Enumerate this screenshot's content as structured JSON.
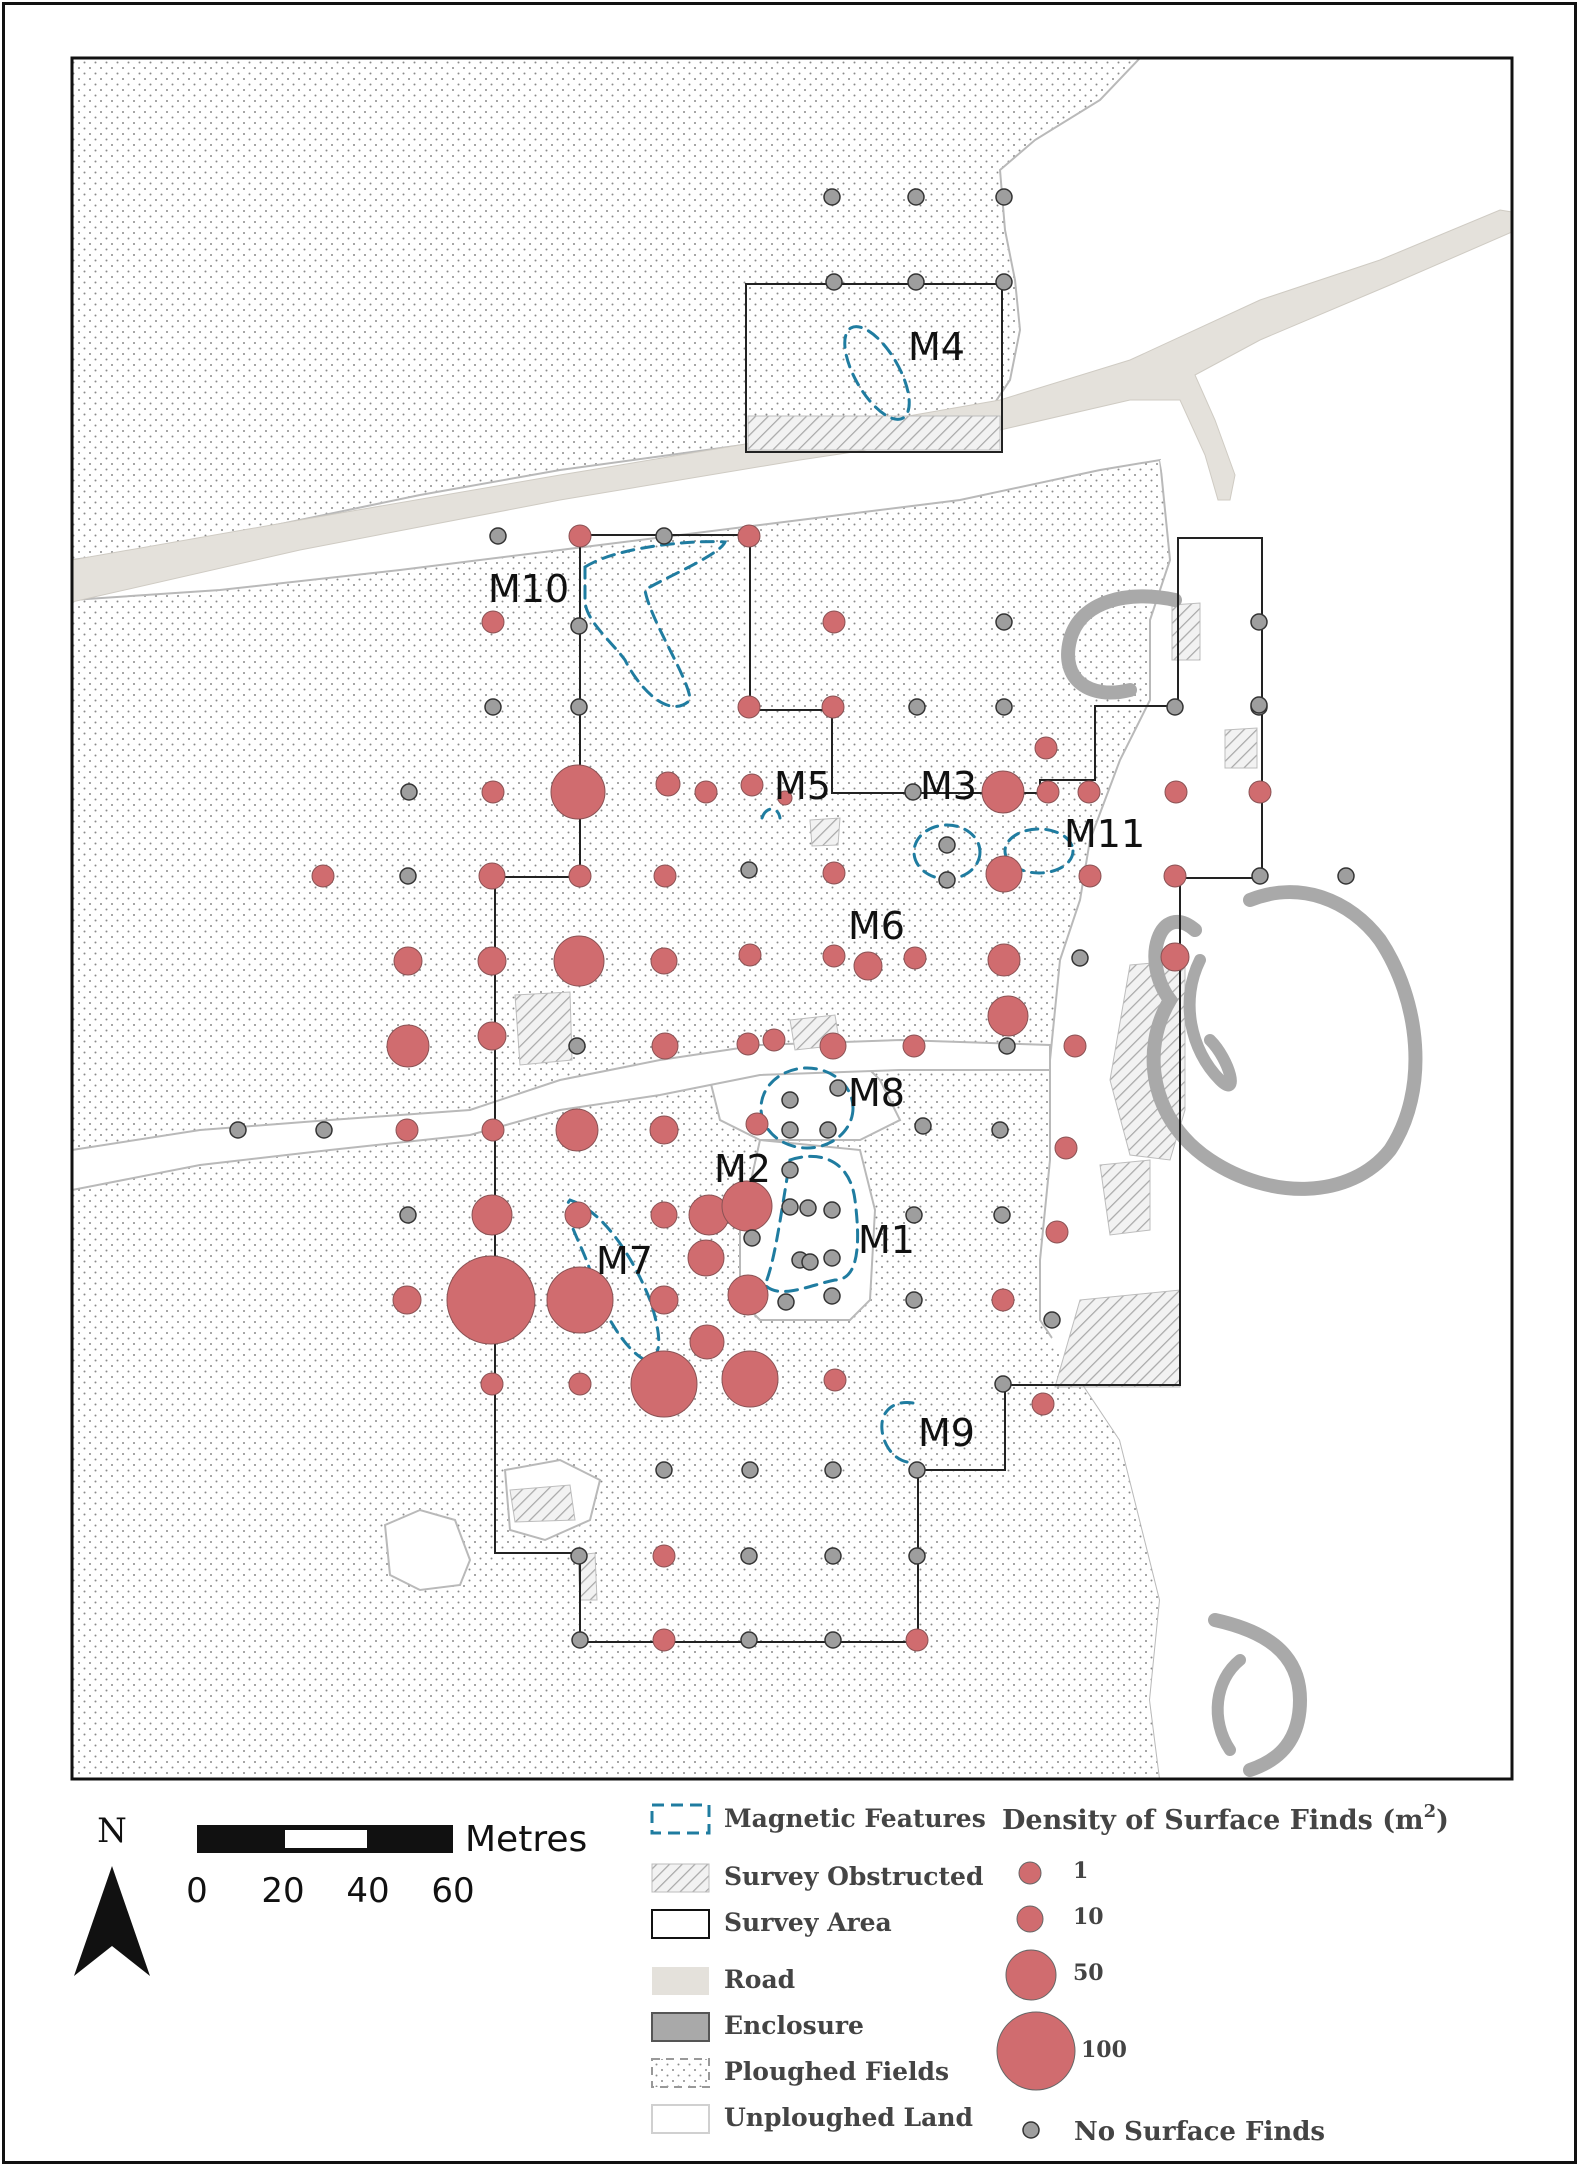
{
  "map": {
    "feature_labels": [
      {
        "id": "m1",
        "text": "M1"
      },
      {
        "id": "m2",
        "text": "M2"
      },
      {
        "id": "m3",
        "text": "M3"
      },
      {
        "id": "m4",
        "text": "M4"
      },
      {
        "id": "m5",
        "text": "M5"
      },
      {
        "id": "m6",
        "text": "M6"
      },
      {
        "id": "m7",
        "text": "M7"
      },
      {
        "id": "m8",
        "text": "M8"
      },
      {
        "id": "m9",
        "text": "M9"
      },
      {
        "id": "m10",
        "text": "M10"
      },
      {
        "id": "m11",
        "text": "M11"
      }
    ]
  },
  "north_arrow": {
    "label": "N"
  },
  "scale_bar": {
    "unit": "Metres",
    "ticks": [
      "0",
      "20",
      "40",
      "60"
    ]
  },
  "legend": {
    "symbols": [
      {
        "key": "magnetic",
        "label": "Magnetic Features"
      },
      {
        "key": "obstructed",
        "label": "Survey Obstructed"
      },
      {
        "key": "survey_area",
        "label": "Survey Area"
      },
      {
        "key": "road",
        "label": "Road"
      },
      {
        "key": "enclosure",
        "label": "Enclosure"
      },
      {
        "key": "ploughed",
        "label": "Ploughed Fields"
      },
      {
        "key": "unploughed",
        "label": "Unploughed Land"
      }
    ],
    "density": {
      "title": "Density of Surface Finds (m",
      "title_sup": "2",
      "title_close": ")",
      "classes": [
        {
          "value": 1,
          "label": "1"
        },
        {
          "value": 10,
          "label": "10"
        },
        {
          "value": 50,
          "label": "50"
        },
        {
          "value": 100,
          "label": "100"
        }
      ],
      "none_label": "No Surface Finds"
    }
  },
  "colors": {
    "find_fill": "#d06c6f",
    "none_fill": "#9e9e9e",
    "magnetic_stroke": "#1f7ca0",
    "road": "#e4e1db",
    "enclosure": "#a9a9a9",
    "dots": "#8a8a8a"
  }
}
